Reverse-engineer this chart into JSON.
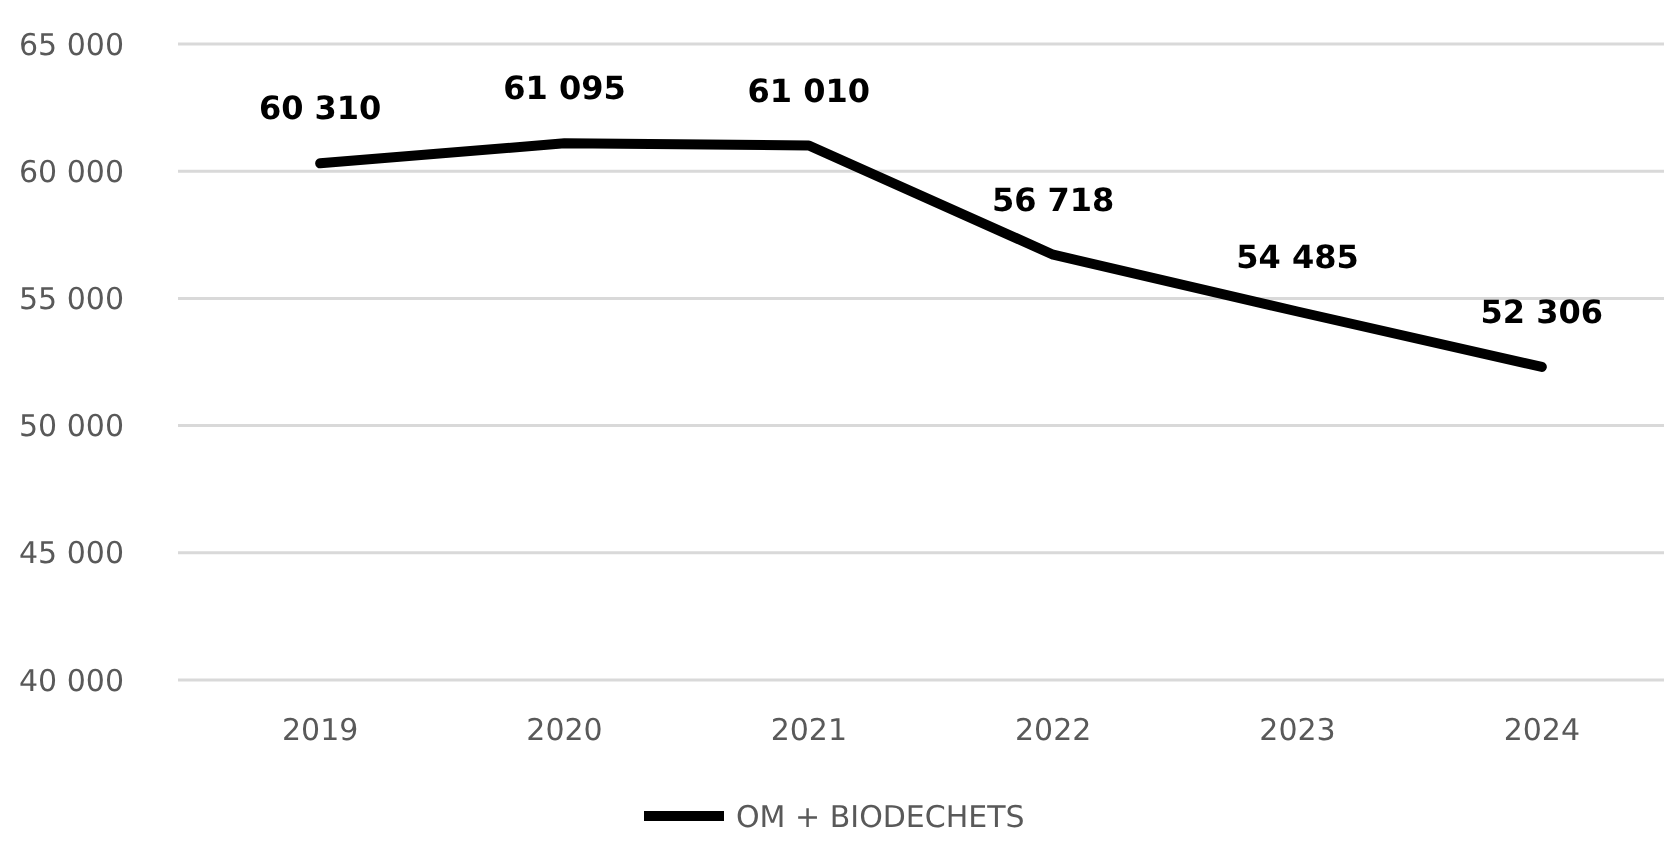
{
  "chart_data": {
    "type": "line",
    "categories": [
      "2019",
      "2020",
      "2021",
      "2022",
      "2023",
      "2024"
    ],
    "series": [
      {
        "name": "OM + BIODECHETS",
        "color": "#000000",
        "values": [
          60310,
          61095,
          61010,
          56718,
          54485,
          52306
        ],
        "value_labels": [
          "60 310",
          "61 095",
          "61 010",
          "56 718",
          "54 485",
          "52 306"
        ]
      }
    ],
    "ylim": [
      40000,
      65000
    ],
    "yticks": [
      {
        "value": 40000,
        "label": "40 000"
      },
      {
        "value": 45000,
        "label": "45 000"
      },
      {
        "value": 50000,
        "label": "50 000"
      },
      {
        "value": 55000,
        "label": "55 000"
      },
      {
        "value": 60000,
        "label": "60 000"
      },
      {
        "value": 65000,
        "label": "65 000"
      }
    ],
    "grid": "y",
    "legend": "bottom",
    "marker": "none",
    "line_style": "solid"
  }
}
